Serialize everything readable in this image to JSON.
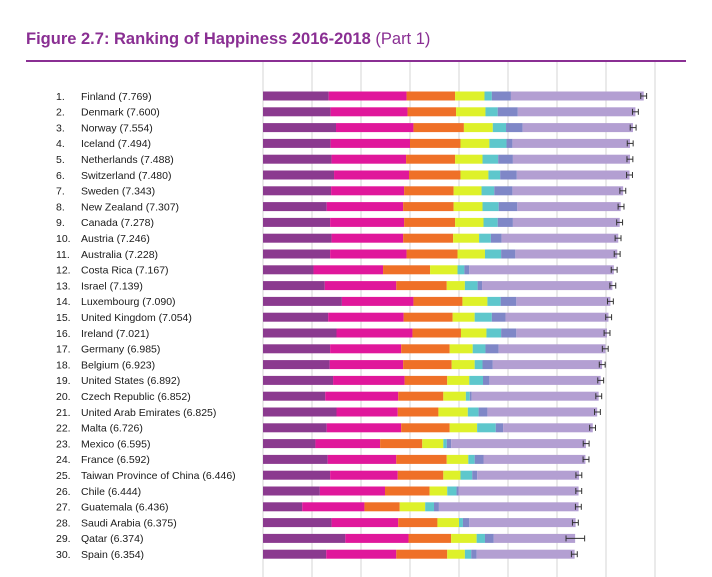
{
  "figure": {
    "title_bold": "Figure 2.7: Ranking of Happiness 2016-2018",
    "title_suffix": "(Part 1)"
  },
  "colors": {
    "title": "#8a2f93",
    "rule": "#8a2f93",
    "segments": [
      "#8b3a8f",
      "#e0179b",
      "#ef7027",
      "#def12a",
      "#5ec7cc",
      "#7f87c7",
      "#b39fd2"
    ],
    "error_bar": "#333333",
    "grid": "#cccccc"
  },
  "chart_data": {
    "type": "bar",
    "orientation": "horizontal",
    "stacked": true,
    "xlim": [
      0,
      8
    ],
    "grid": true,
    "rows": [
      {
        "rank": "1.",
        "label": "Finland (7.769)",
        "value": 7.769,
        "segments": [
          1.34,
          1.59,
          0.99,
          0.6,
          0.15,
          0.39,
          2.71
        ]
      },
      {
        "rank": "2.",
        "label": "Denmark (7.600)",
        "value": 7.6,
        "segments": [
          1.38,
          1.57,
          0.99,
          0.6,
          0.25,
          0.41,
          2.4
        ]
      },
      {
        "rank": "3.",
        "label": "Norway (7.554)",
        "value": 7.554,
        "segments": [
          1.49,
          1.58,
          1.03,
          0.59,
          0.27,
          0.34,
          2.25
        ]
      },
      {
        "rank": "4.",
        "label": "Iceland (7.494)",
        "value": 7.494,
        "segments": [
          1.38,
          1.62,
          1.03,
          0.59,
          0.35,
          0.12,
          2.4
        ]
      },
      {
        "rank": "5.",
        "label": "Netherlands (7.488)",
        "value": 7.488,
        "segments": [
          1.4,
          1.52,
          1.0,
          0.56,
          0.32,
          0.3,
          2.39
        ]
      },
      {
        "rank": "6.",
        "label": "Switzerland (7.480)",
        "value": 7.48,
        "segments": [
          1.45,
          1.53,
          1.05,
          0.57,
          0.24,
          0.34,
          2.3
        ]
      },
      {
        "rank": "7.",
        "label": "Sweden (7.343)",
        "value": 7.343,
        "segments": [
          1.39,
          1.49,
          1.01,
          0.57,
          0.26,
          0.37,
          2.26
        ]
      },
      {
        "rank": "8.",
        "label": "New Zealand (7.307)",
        "value": 7.307,
        "segments": [
          1.3,
          1.56,
          1.03,
          0.59,
          0.33,
          0.38,
          2.11
        ]
      },
      {
        "rank": "9.",
        "label": "Canada (7.278)",
        "value": 7.278,
        "segments": [
          1.37,
          1.51,
          1.04,
          0.58,
          0.29,
          0.31,
          2.18
        ]
      },
      {
        "rank": "10.",
        "label": "Austria (7.246)",
        "value": 7.246,
        "segments": [
          1.4,
          1.46,
          1.02,
          0.53,
          0.24,
          0.22,
          2.38
        ]
      },
      {
        "rank": "11.",
        "label": "Australia (7.228)",
        "value": 7.228,
        "segments": [
          1.37,
          1.56,
          1.04,
          0.56,
          0.33,
          0.29,
          2.08
        ]
      },
      {
        "rank": "12.",
        "label": "Costa Rica (7.167)",
        "value": 7.167,
        "segments": [
          1.03,
          1.42,
          0.96,
          0.56,
          0.14,
          0.1,
          2.95
        ]
      },
      {
        "rank": "13.",
        "label": "Israel (7.139)",
        "value": 7.139,
        "segments": [
          1.26,
          1.46,
          1.03,
          0.37,
          0.26,
          0.09,
          2.66
        ]
      },
      {
        "rank": "14.",
        "label": "Luxembourg (7.090)",
        "value": 7.09,
        "segments": [
          1.61,
          1.46,
          1.0,
          0.51,
          0.27,
          0.32,
          1.92
        ]
      },
      {
        "rank": "15.",
        "label": "United Kingdom (7.054)",
        "value": 7.054,
        "segments": [
          1.33,
          1.54,
          1.0,
          0.45,
          0.35,
          0.28,
          2.1
        ]
      },
      {
        "rank": "16.",
        "label": "Ireland (7.021)",
        "value": 7.021,
        "segments": [
          1.5,
          1.55,
          0.99,
          0.52,
          0.3,
          0.31,
          1.85
        ]
      },
      {
        "rank": "17.",
        "label": "Germany (6.985)",
        "value": 6.985,
        "segments": [
          1.37,
          1.45,
          0.99,
          0.47,
          0.26,
          0.27,
          2.18
        ]
      },
      {
        "rank": "18.",
        "label": "Belgium (6.923)",
        "value": 6.923,
        "segments": [
          1.36,
          1.5,
          0.99,
          0.47,
          0.16,
          0.21,
          2.23
        ]
      },
      {
        "rank": "19.",
        "label": "United States (6.892)",
        "value": 6.892,
        "segments": [
          1.43,
          1.46,
          0.87,
          0.45,
          0.28,
          0.13,
          2.27
        ]
      },
      {
        "rank": "20.",
        "label": "Czech Republic (6.852)",
        "value": 6.852,
        "segments": [
          1.27,
          1.49,
          0.92,
          0.46,
          0.08,
          0.04,
          2.59
        ]
      },
      {
        "rank": "21.",
        "label": "United Arab Emirates (6.825)",
        "value": 6.825,
        "segments": [
          1.5,
          1.25,
          0.83,
          0.6,
          0.22,
          0.18,
          2.24
        ]
      },
      {
        "rank": "22.",
        "label": "Malta (6.726)",
        "value": 6.726,
        "segments": [
          1.3,
          1.52,
          0.99,
          0.56,
          0.38,
          0.15,
          1.83
        ]
      },
      {
        "rank": "23.",
        "label": "Mexico (6.595)",
        "value": 6.595,
        "segments": [
          1.07,
          1.32,
          0.86,
          0.43,
          0.07,
          0.09,
          2.75
        ]
      },
      {
        "rank": "24.",
        "label": "France (6.592)",
        "value": 6.592,
        "segments": [
          1.32,
          1.4,
          1.03,
          0.44,
          0.13,
          0.18,
          2.08
        ]
      },
      {
        "rank": "25.",
        "label": "Taiwan Province of China (6.446)",
        "value": 6.446,
        "segments": [
          1.37,
          1.38,
          0.93,
          0.35,
          0.24,
          0.1,
          2.08
        ]
      },
      {
        "rank": "26.",
        "label": "Chile (6.444)",
        "value": 6.444,
        "segments": [
          1.16,
          1.33,
          0.91,
          0.36,
          0.19,
          0.04,
          2.45
        ]
      },
      {
        "rank": "27.",
        "label": "Guatemala (6.436)",
        "value": 6.436,
        "segments": [
          0.8,
          1.27,
          0.72,
          0.52,
          0.18,
          0.1,
          2.85
        ]
      },
      {
        "rank": "28.",
        "label": "Saudi Arabia (6.375)",
        "value": 6.375,
        "segments": [
          1.4,
          1.36,
          0.8,
          0.44,
          0.08,
          0.13,
          2.17
        ]
      },
      {
        "rank": "29.",
        "label": "Qatar (6.374)",
        "value": 6.374,
        "segments": [
          1.68,
          1.29,
          0.87,
          0.52,
          0.17,
          0.18,
          1.66
        ]
      },
      {
        "rank": "30.",
        "label": "Spain (6.354)",
        "value": 6.354,
        "segments": [
          1.29,
          1.43,
          1.04,
          0.36,
          0.13,
          0.11,
          2.0
        ]
      }
    ]
  }
}
